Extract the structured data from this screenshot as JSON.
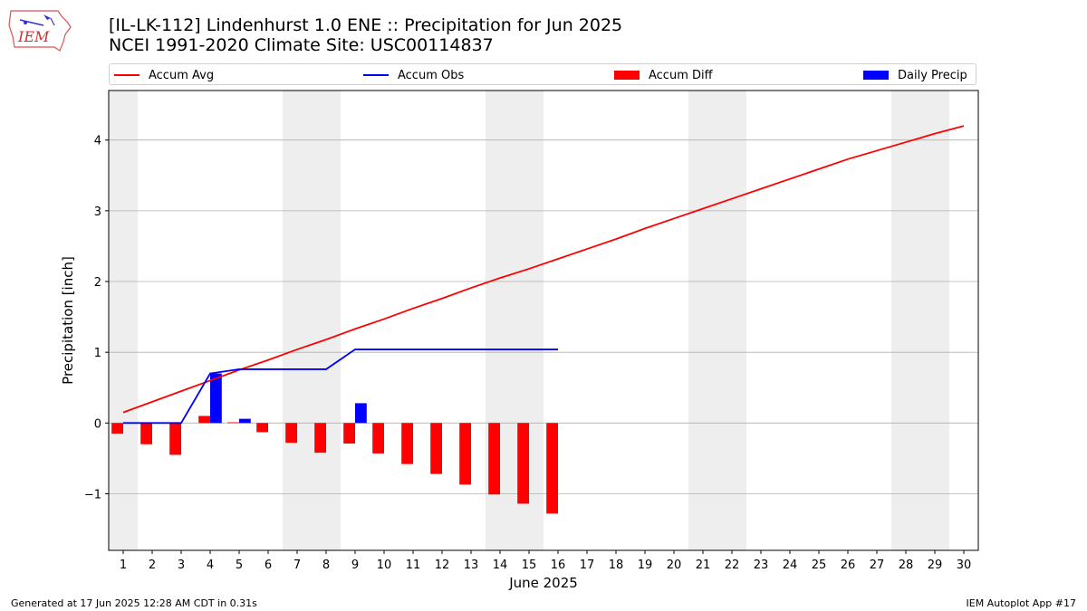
{
  "header": {
    "title_line1": "[IL-LK-112] Lindenhurst 1.0 ENE :: Precipitation for Jun 2025",
    "title_line2": "NCEI 1991-2020 Climate Site: USC00114837"
  },
  "logo": {
    "text": "IEM",
    "icon": "iowa-state-outline-with-weather-icons"
  },
  "colors": {
    "avg": "#ff0000",
    "obs": "#0000ff",
    "diff": "#ff0000",
    "daily": "#0000ff",
    "weekend": "#eeeeee",
    "grid": "#b0b0b0"
  },
  "chart_data": {
    "type": "bar",
    "xlabel": "June 2025",
    "ylabel": "Precipitation [inch]",
    "xlim": [
      0.5,
      30.5
    ],
    "ylim": [
      -1.8,
      4.7
    ],
    "yticks": [
      -1,
      0,
      1,
      2,
      3,
      4
    ],
    "ytick_labels": [
      "−1",
      "0",
      "1",
      "2",
      "3",
      "4"
    ],
    "days": [
      1,
      2,
      3,
      4,
      5,
      6,
      7,
      8,
      9,
      10,
      11,
      12,
      13,
      14,
      15,
      16,
      17,
      18,
      19,
      20,
      21,
      22,
      23,
      24,
      25,
      26,
      27,
      28,
      29,
      30
    ],
    "weekend_days": [
      1,
      7,
      8,
      14,
      15,
      21,
      22,
      28,
      29
    ],
    "grid": "horizontal",
    "legend_position": "top",
    "series": [
      {
        "name": "Accum Avg",
        "kind": "line",
        "x": [
          1,
          2,
          3,
          4,
          5,
          6,
          7,
          8,
          9,
          10,
          11,
          12,
          13,
          14,
          15,
          16,
          17,
          18,
          19,
          20,
          21,
          22,
          23,
          24,
          25,
          26,
          27,
          28,
          29,
          30
        ],
        "values": [
          0.15,
          0.3,
          0.45,
          0.6,
          0.75,
          0.89,
          1.04,
          1.18,
          1.33,
          1.47,
          1.62,
          1.76,
          1.91,
          2.05,
          2.18,
          2.32,
          2.46,
          2.6,
          2.75,
          2.89,
          3.03,
          3.17,
          3.31,
          3.45,
          3.59,
          3.73,
          3.85,
          3.97,
          4.09,
          4.2
        ]
      },
      {
        "name": "Accum Obs",
        "kind": "line",
        "x": [
          1,
          2,
          3,
          4,
          5,
          6,
          7,
          8,
          9,
          10,
          11,
          12,
          13,
          14,
          15,
          16
        ],
        "values": [
          0.0,
          0.0,
          0.0,
          0.7,
          0.76,
          0.76,
          0.76,
          0.76,
          1.04,
          1.04,
          1.04,
          1.04,
          1.04,
          1.04,
          1.04,
          1.04
        ]
      },
      {
        "name": "Accum Diff",
        "kind": "bar",
        "offset": -0.2,
        "x": [
          1,
          2,
          3,
          4,
          5,
          6,
          7,
          8,
          9,
          10,
          11,
          12,
          13,
          14,
          15,
          16
        ],
        "values": [
          -0.15,
          -0.3,
          -0.45,
          0.1,
          0.01,
          -0.13,
          -0.28,
          -0.42,
          -0.29,
          -0.43,
          -0.58,
          -0.72,
          -0.87,
          -1.01,
          -1.14,
          -1.28
        ]
      },
      {
        "name": "Daily Precip",
        "kind": "bar",
        "offset": 0.2,
        "x": [
          4,
          5,
          9
        ],
        "values": [
          0.7,
          0.06,
          0.28
        ]
      }
    ]
  },
  "footer": {
    "left": "Generated at 17 Jun 2025 12:28 AM CDT in 0.31s",
    "right": "IEM Autoplot App #17"
  }
}
